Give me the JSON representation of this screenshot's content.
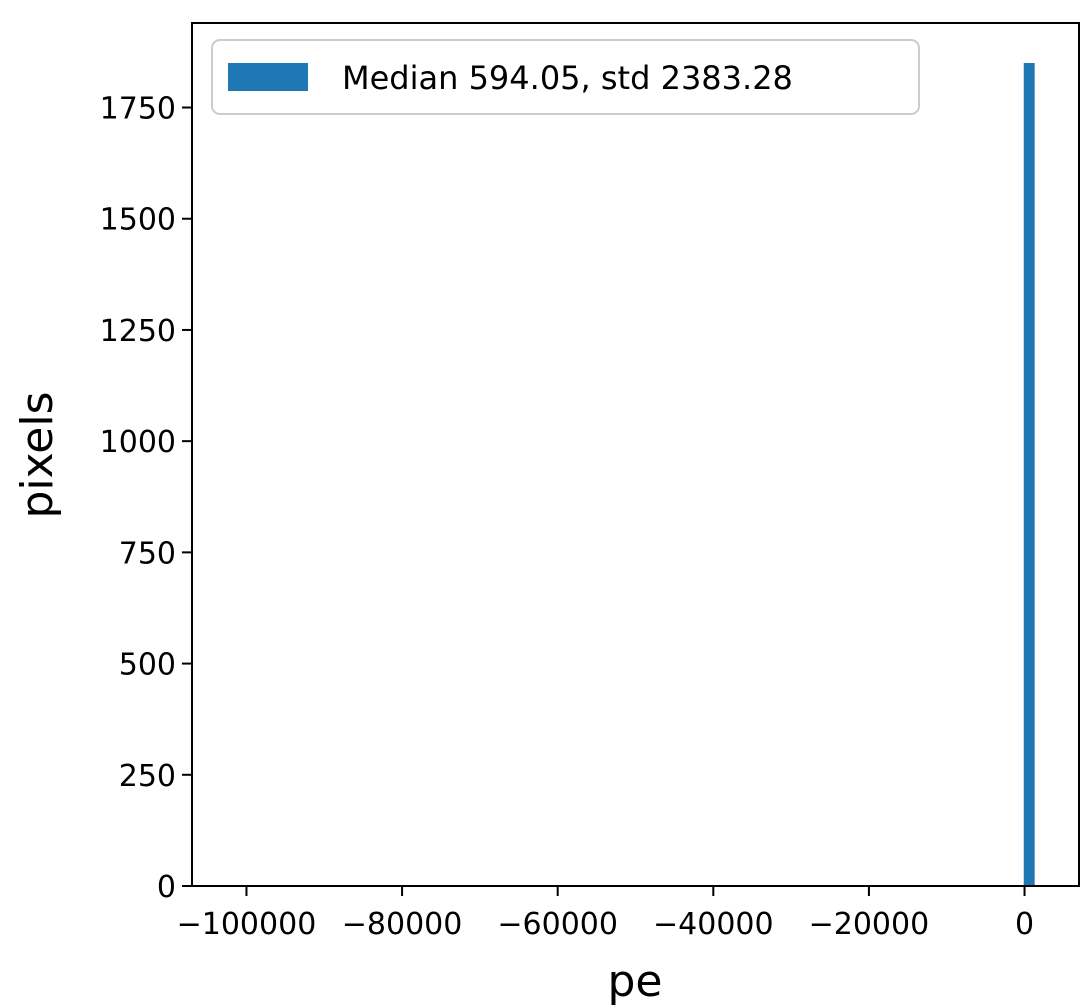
{
  "chart_data": {
    "type": "bar",
    "xlabel": "pe",
    "ylabel": "pixels",
    "xlim": [
      -107000,
      7000
    ],
    "ylim": [
      0,
      1940
    ],
    "x_ticks": [
      {
        "value": -100000,
        "label": "−100000"
      },
      {
        "value": -80000,
        "label": "−80000"
      },
      {
        "value": -60000,
        "label": "−60000"
      },
      {
        "value": -40000,
        "label": "−40000"
      },
      {
        "value": -20000,
        "label": "−20000"
      },
      {
        "value": 0,
        "label": "0"
      }
    ],
    "y_ticks": [
      {
        "value": 0,
        "label": "0"
      },
      {
        "value": 250,
        "label": "250"
      },
      {
        "value": 500,
        "label": "500"
      },
      {
        "value": 750,
        "label": "750"
      },
      {
        "value": 1000,
        "label": "1000"
      },
      {
        "value": 1250,
        "label": "1250"
      },
      {
        "value": 1500,
        "label": "1500"
      },
      {
        "value": 1750,
        "label": "1750"
      }
    ],
    "bins": [
      {
        "start": -100,
        "end": 1300,
        "count": 1850
      }
    ],
    "legend": {
      "entry": "Median 594.05, std 2383.28",
      "placement": "top-left"
    },
    "bar_color": "#1f77b4",
    "grid": false
  }
}
